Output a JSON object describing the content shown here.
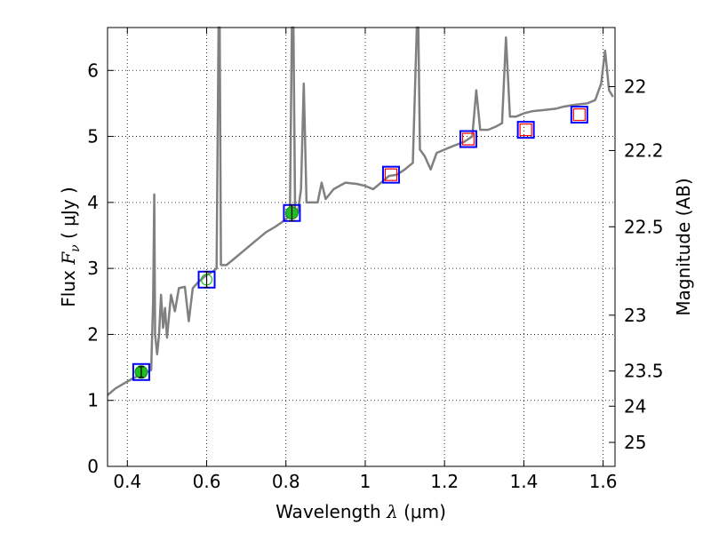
{
  "chart_data": {
    "type": "line",
    "title": "",
    "xlabel": "Wavelength",
    "xlabel_symbol": "λ",
    "xlabel_unit": "(μm)",
    "ylabel": "Flux",
    "ylabel_symbol": "F",
    "ylabel_subscript": "ν",
    "ylabel_unit": "( μJy )",
    "y2label": "Magnitude (AB)",
    "xlim": [
      0.35,
      1.63
    ],
    "ylim": [
      0,
      6.65
    ],
    "grid": true,
    "xticks": [
      0.4,
      0.6,
      0.8,
      1.0,
      1.2,
      1.4,
      1.6
    ],
    "xtick_labels": [
      "0.4",
      "0.6",
      "0.8",
      "1",
      "1.2",
      "1.4",
      "1.6"
    ],
    "yticks": [
      0,
      1,
      2,
      3,
      4,
      5,
      6
    ],
    "ytick_labels": [
      "0",
      "1",
      "2",
      "3",
      "4",
      "5",
      "6"
    ],
    "y2ticks": [
      22,
      22.2,
      22.5,
      23,
      23.5,
      24,
      25
    ],
    "y2tick_labels": [
      "22",
      "22.2",
      "22.5",
      "23",
      "23.5",
      "24",
      "25"
    ],
    "colors": {
      "spectrum": "#808080",
      "model_box": "#0000ff",
      "observed_fill": "#22bb22",
      "upper_box": "#ff0000"
    },
    "spectrum": [
      [
        0.35,
        1.08
      ],
      [
        0.37,
        1.18
      ],
      [
        0.39,
        1.25
      ],
      [
        0.41,
        1.32
      ],
      [
        0.43,
        1.38
      ],
      [
        0.45,
        1.43
      ],
      [
        0.46,
        1.46
      ],
      [
        0.462,
        1.9
      ],
      [
        0.465,
        2.5
      ],
      [
        0.468,
        4.12
      ],
      [
        0.47,
        2.0
      ],
      [
        0.475,
        1.7
      ],
      [
        0.48,
        2.0
      ],
      [
        0.485,
        2.6
      ],
      [
        0.49,
        2.1
      ],
      [
        0.495,
        2.4
      ],
      [
        0.5,
        1.95
      ],
      [
        0.51,
        2.6
      ],
      [
        0.52,
        2.35
      ],
      [
        0.53,
        2.7
      ],
      [
        0.545,
        2.72
      ],
      [
        0.555,
        2.2
      ],
      [
        0.565,
        2.7
      ],
      [
        0.58,
        2.8
      ],
      [
        0.6,
        2.9
      ],
      [
        0.615,
        2.95
      ],
      [
        0.625,
        3.0
      ],
      [
        0.63,
        6.65
      ],
      [
        0.633,
        6.65
      ],
      [
        0.636,
        3.05
      ],
      [
        0.65,
        3.05
      ],
      [
        0.67,
        3.15
      ],
      [
        0.69,
        3.25
      ],
      [
        0.71,
        3.35
      ],
      [
        0.73,
        3.45
      ],
      [
        0.75,
        3.55
      ],
      [
        0.77,
        3.62
      ],
      [
        0.79,
        3.7
      ],
      [
        0.8,
        3.75
      ],
      [
        0.81,
        3.8
      ],
      [
        0.815,
        6.65
      ],
      [
        0.819,
        6.65
      ],
      [
        0.823,
        3.9
      ],
      [
        0.83,
        3.85
      ],
      [
        0.838,
        4.2
      ],
      [
        0.845,
        5.8
      ],
      [
        0.852,
        4.0
      ],
      [
        0.86,
        4.0
      ],
      [
        0.88,
        4.0
      ],
      [
        0.89,
        4.3
      ],
      [
        0.9,
        4.05
      ],
      [
        0.92,
        4.2
      ],
      [
        0.95,
        4.3
      ],
      [
        0.98,
        4.28
      ],
      [
        1.0,
        4.25
      ],
      [
        1.02,
        4.2
      ],
      [
        1.04,
        4.3
      ],
      [
        1.06,
        4.4
      ],
      [
        1.08,
        4.42
      ],
      [
        1.1,
        4.5
      ],
      [
        1.12,
        4.6
      ],
      [
        1.13,
        6.65
      ],
      [
        1.134,
        6.65
      ],
      [
        1.138,
        4.8
      ],
      [
        1.15,
        4.7
      ],
      [
        1.165,
        4.5
      ],
      [
        1.18,
        4.75
      ],
      [
        1.2,
        4.8
      ],
      [
        1.22,
        4.85
      ],
      [
        1.25,
        4.92
      ],
      [
        1.27,
        5.0
      ],
      [
        1.28,
        5.7
      ],
      [
        1.29,
        5.1
      ],
      [
        1.31,
        5.1
      ],
      [
        1.33,
        5.15
      ],
      [
        1.345,
        5.2
      ],
      [
        1.355,
        6.5
      ],
      [
        1.365,
        5.3
      ],
      [
        1.38,
        5.3
      ],
      [
        1.4,
        5.35
      ],
      [
        1.42,
        5.38
      ],
      [
        1.45,
        5.4
      ],
      [
        1.48,
        5.42
      ],
      [
        1.5,
        5.45
      ],
      [
        1.53,
        5.48
      ],
      [
        1.56,
        5.5
      ],
      [
        1.58,
        5.55
      ],
      [
        1.595,
        5.8
      ],
      [
        1.605,
        6.3
      ],
      [
        1.615,
        5.7
      ],
      [
        1.625,
        5.6
      ]
    ],
    "photometry": [
      {
        "x": 0.435,
        "y": 1.43,
        "kind": "observed",
        "err": 0.08
      },
      {
        "x": 0.6,
        "y": 2.83,
        "kind": "observed-open",
        "err": 0.12
      },
      {
        "x": 0.815,
        "y": 3.84,
        "kind": "observed",
        "err": 0.12
      },
      {
        "x": 1.065,
        "y": 4.42,
        "kind": "upper"
      },
      {
        "x": 1.26,
        "y": 4.96,
        "kind": "upper"
      },
      {
        "x": 1.405,
        "y": 5.1,
        "kind": "upper"
      },
      {
        "x": 1.54,
        "y": 5.33,
        "kind": "upper"
      }
    ]
  }
}
